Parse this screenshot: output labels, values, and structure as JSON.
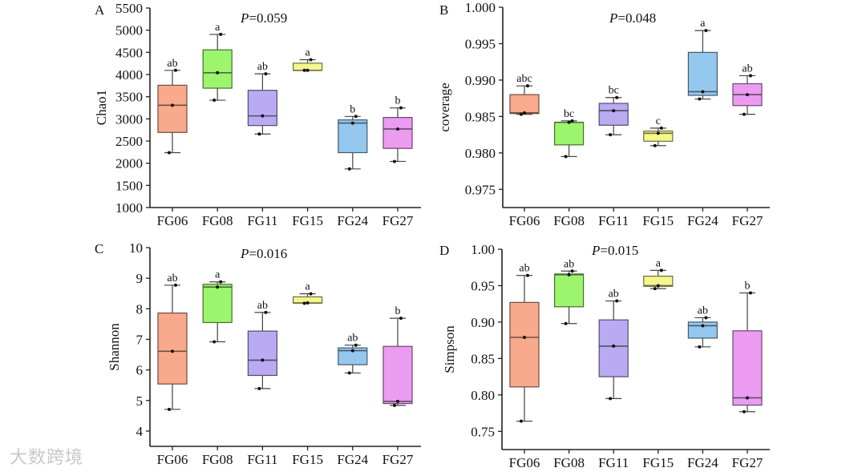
{
  "watermark": "大数跨境",
  "chart_data": [
    {
      "type": "box",
      "panel": "A",
      "ylabel": "Chao1",
      "p_prefix": "P",
      "p_value": "=0.059",
      "ylim": [
        1000,
        5500
      ],
      "yticks": [
        1000,
        1500,
        2000,
        2500,
        3000,
        3500,
        4000,
        4500,
        5000,
        5500
      ],
      "ytick_labels": [
        "1000",
        "1500",
        "2000",
        "2500",
        "3000",
        "3500",
        "4000",
        "4500",
        "5000",
        "5500"
      ],
      "categories": [
        "FG06",
        "FG08",
        "FG11",
        "FG15",
        "FG24",
        "FG27"
      ],
      "colors": [
        "#f9aa8c",
        "#9cf56c",
        "#b9aaf2",
        "#f5f68c",
        "#95c8ef",
        "#eb9cf1"
      ],
      "boxes": [
        {
          "min": 2238,
          "q1": 2694,
          "median": 3307,
          "q3": 3758,
          "max": 4094,
          "letter": "ab"
        },
        {
          "min": 3421,
          "q1": 3692,
          "median": 4040,
          "q3": 4557,
          "max": 4905,
          "letter": "a"
        },
        {
          "min": 2658,
          "q1": 2850,
          "median": 3067,
          "q3": 3644,
          "max": 4016,
          "letter": "ab"
        },
        {
          "min": 4094,
          "q1": 4094,
          "median": 4094,
          "q3": 4256,
          "max": 4334,
          "letter": "a"
        },
        {
          "min": 1871,
          "q1": 2238,
          "median": 2905,
          "q3": 2977,
          "max": 3055,
          "letter": "b"
        },
        {
          "min": 2040,
          "q1": 2334,
          "median": 2772,
          "q3": 3031,
          "max": 3247,
          "letter": "b"
        }
      ]
    },
    {
      "type": "box",
      "panel": "B",
      "ylabel": "coverage",
      "p_prefix": "P",
      "p_value": "=0.048",
      "ylim": [
        0.9725,
        1.0
      ],
      "yticks": [
        0.975,
        0.98,
        0.985,
        0.99,
        0.995,
        1.0
      ],
      "ytick_labels": [
        "0.975",
        "0.980",
        "0.985",
        "0.990",
        "0.995",
        "1.000"
      ],
      "categories": [
        "FG06",
        "FG08",
        "FG11",
        "FG15",
        "FG24",
        "FG27"
      ],
      "colors": [
        "#f9aa8c",
        "#9cf56c",
        "#b9aaf2",
        "#f5f68c",
        "#95c8ef",
        "#eb9cf1"
      ],
      "boxes": [
        {
          "min": 0.9853,
          "q1": 0.9854,
          "median": 0.9855,
          "q3": 0.988,
          "max": 0.9892,
          "letter": "abc"
        },
        {
          "min": 0.9795,
          "q1": 0.9811,
          "median": 0.9842,
          "q3": 0.9842,
          "max": 0.9844,
          "letter": "bc"
        },
        {
          "min": 0.9825,
          "q1": 0.9838,
          "median": 0.9858,
          "q3": 0.9868,
          "max": 0.9876,
          "letter": "bc"
        },
        {
          "min": 0.981,
          "q1": 0.9816,
          "median": 0.9827,
          "q3": 0.983,
          "max": 0.9834,
          "letter": "c"
        },
        {
          "min": 0.9874,
          "q1": 0.9879,
          "median": 0.9884,
          "q3": 0.9938,
          "max": 0.9968,
          "letter": "a"
        },
        {
          "min": 0.9853,
          "q1": 0.9865,
          "median": 0.988,
          "q3": 0.9895,
          "max": 0.9906,
          "letter": "ab"
        }
      ]
    },
    {
      "type": "box",
      "panel": "C",
      "ylabel": "Shannon",
      "p_prefix": "P",
      "p_value": "=0.016",
      "ylim": [
        3.5,
        10
      ],
      "yticks": [
        4,
        5,
        6,
        7,
        8,
        9,
        10
      ],
      "ytick_labels": [
        "4",
        "5",
        "6",
        "7",
        "8",
        "9",
        "10"
      ],
      "categories": [
        "FG06",
        "FG08",
        "FG11",
        "FG15",
        "FG24",
        "FG27"
      ],
      "colors": [
        "#f9aa8c",
        "#9cf56c",
        "#b9aaf2",
        "#f5f68c",
        "#95c8ef",
        "#eb9cf1"
      ],
      "boxes": [
        {
          "min": 4.71,
          "q1": 5.54,
          "median": 6.61,
          "q3": 7.86,
          "max": 8.77,
          "letter": "ab"
        },
        {
          "min": 6.92,
          "q1": 7.55,
          "median": 8.71,
          "q3": 8.8,
          "max": 8.88,
          "letter": "a"
        },
        {
          "min": 5.39,
          "q1": 5.82,
          "median": 6.32,
          "q3": 7.27,
          "max": 7.88,
          "letter": "ab"
        },
        {
          "min": 8.18,
          "q1": 8.18,
          "median": 8.19,
          "q3": 8.39,
          "max": 8.49,
          "letter": "a"
        },
        {
          "min": 5.9,
          "q1": 6.17,
          "median": 6.63,
          "q3": 6.72,
          "max": 6.81,
          "letter": "ab"
        },
        {
          "min": 4.84,
          "q1": 4.9,
          "median": 4.97,
          "q3": 6.77,
          "max": 7.69,
          "letter": "b"
        }
      ]
    },
    {
      "type": "box",
      "panel": "D",
      "ylabel": "Simpson",
      "p_prefix": "P",
      "p_value": "=0.015",
      "ylim": [
        0.725,
        1.0
      ],
      "yticks": [
        0.75,
        0.8,
        0.85,
        0.9,
        0.95,
        1.0
      ],
      "ytick_labels": [
        "0.75",
        "0.80",
        "0.85",
        "0.90",
        "0.95",
        "1.00"
      ],
      "categories": [
        "FG06",
        "FG08",
        "FG11",
        "FG15",
        "FG24",
        "FG27"
      ],
      "colors": [
        "#f9aa8c",
        "#9cf56c",
        "#b9aaf2",
        "#f5f68c",
        "#95c8ef",
        "#eb9cf1"
      ],
      "boxes": [
        {
          "min": 0.764,
          "q1": 0.811,
          "median": 0.879,
          "q3": 0.927,
          "max": 0.964,
          "letter": "ab"
        },
        {
          "min": 0.898,
          "q1": 0.921,
          "median": 0.965,
          "q3": 0.966,
          "max": 0.97,
          "letter": "ab"
        },
        {
          "min": 0.795,
          "q1": 0.825,
          "median": 0.867,
          "q3": 0.903,
          "max": 0.929,
          "letter": "ab"
        },
        {
          "min": 0.946,
          "q1": 0.949,
          "median": 0.95,
          "q3": 0.963,
          "max": 0.971,
          "letter": "a"
        },
        {
          "min": 0.866,
          "q1": 0.878,
          "median": 0.895,
          "q3": 0.9,
          "max": 0.906,
          "letter": "ab"
        },
        {
          "min": 0.777,
          "q1": 0.786,
          "median": 0.796,
          "q3": 0.888,
          "max": 0.94,
          "letter": "b"
        }
      ]
    }
  ]
}
